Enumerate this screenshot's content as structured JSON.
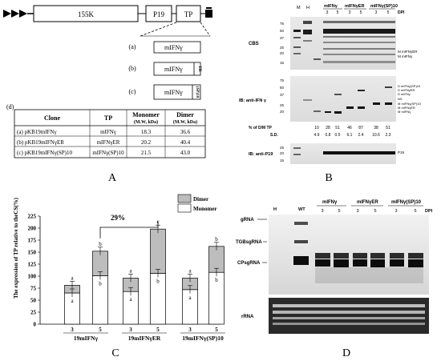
{
  "panelA": {
    "letter": "A",
    "construct": {
      "seg1": "155K",
      "seg2": "P19",
      "seg3": "TP"
    },
    "insertA": {
      "key": "(a)",
      "label": "mIFNγ"
    },
    "insertB": {
      "key": "(b)",
      "label": "mIFNγ",
      "tag": "ER"
    },
    "insertC": {
      "key": "(c)",
      "label": "mIFNγ",
      "tag": "(SP)10"
    },
    "table": {
      "key": "(d)",
      "headers": [
        "Clone",
        "TP",
        "Monomer",
        "Dimer"
      ],
      "subheaders": [
        "(M.W, kDa)",
        "(M.W, kDa)"
      ],
      "rows": [
        [
          "(a) pKB19mIFNγ",
          "mIFNγ",
          "18.3",
          "36.6"
        ],
        [
          "(b) pKB19mIFNγER",
          "mIFNγER",
          "20.2",
          "40.4"
        ],
        [
          "(c) pKB19mIFNγ(SP)10",
          "mIFNγ(SP)10",
          "21.5",
          "43.0"
        ]
      ]
    }
  },
  "panelB": {
    "letter": "B",
    "lanes": {
      "m": "M",
      "h": "H",
      "p": "P"
    },
    "groups": [
      "mIFNγ",
      "mIFNγER",
      "mIFNγ(SP)10"
    ],
    "days": [
      "3",
      "5",
      "3",
      "5",
      "3",
      "5"
    ],
    "dpi": "DPI",
    "cbs": "CBS",
    "ib1": "IB: anti-IFN γ",
    "ib2": "IB: anti-P19",
    "mw_top": [
      "75",
      "50",
      "37",
      "25",
      "20",
      "15"
    ],
    "mw_mid": [
      "75",
      "50",
      "37",
      "25",
      "20"
    ],
    "mw_bot": [
      "25",
      "20",
      "15"
    ],
    "arrows_top": [
      "M mIFNγER",
      "M mIFNγ"
    ],
    "arrows_mid": [
      "D mIFNγ(SP)10",
      "D mIFNγER",
      "D mIFNγ",
      "NS",
      "M mIFNγ(SP)10",
      "M mIFNγER",
      "M mIFNγ"
    ],
    "arrow_p19": "P19",
    "pct_label": "% of D/M TP",
    "pct_values": [
      "10",
      "28",
      "51",
      "46",
      "87",
      "38",
      "51"
    ],
    "sd_label": "S.D.",
    "sd_values": [
      "4.9",
      "0.8",
      "0.5",
      "6.1",
      "2.4",
      "10.6",
      "2.3"
    ]
  },
  "panelC": {
    "letter": "C",
    "ylabel": "The expression of TP relative to theCS(%)",
    "legend": [
      "Dimer",
      "Monomer"
    ],
    "bracket": "29%",
    "yticks": [
      "0",
      "25",
      "50",
      "75",
      "100",
      "125",
      "150",
      "175",
      "200",
      "225"
    ],
    "group_labels": [
      "19mIFNγ",
      "19mIFNγER",
      "19mIFNγ(SP)10"
    ],
    "day_labels": [
      "3",
      "5",
      "3",
      "5",
      "3",
      "5"
    ],
    "letters_top": [
      "a",
      "b",
      "a",
      "c",
      "a",
      "b"
    ],
    "letters_mono": [
      "a",
      "b",
      "a",
      "b",
      "a",
      "b"
    ]
  },
  "chart_data": {
    "type": "bar",
    "ylabel": "The expression of TP relative to theCS(%)",
    "ylim": [
      0,
      225
    ],
    "categories": [
      "3",
      "5",
      "3",
      "5",
      "3",
      "5"
    ],
    "groups": [
      "19mIFNγ",
      "19mIFNγER",
      "19mIFNγ(SP)10"
    ],
    "series": [
      {
        "name": "Monomer",
        "values": [
          65,
          101,
          68,
          106,
          72,
          108
        ]
      },
      {
        "name": "Dimer",
        "values": [
          16,
          51,
          28,
          92,
          24,
          54
        ]
      }
    ],
    "legend": "top-right",
    "stacked": true
  },
  "panelD": {
    "letter": "D",
    "lanes": {
      "h": "H",
      "wt": "WT"
    },
    "groups": [
      "mIFNγ",
      "mIFNγER",
      "mIFNγ(SP)10"
    ],
    "days": [
      "3",
      "5",
      "3",
      "5",
      "3",
      "5"
    ],
    "dpi": "DPI",
    "rna_labels": [
      "gRNA",
      "TGBsgRNA",
      "CPsgRNA"
    ],
    "rrna": "rRNA"
  }
}
